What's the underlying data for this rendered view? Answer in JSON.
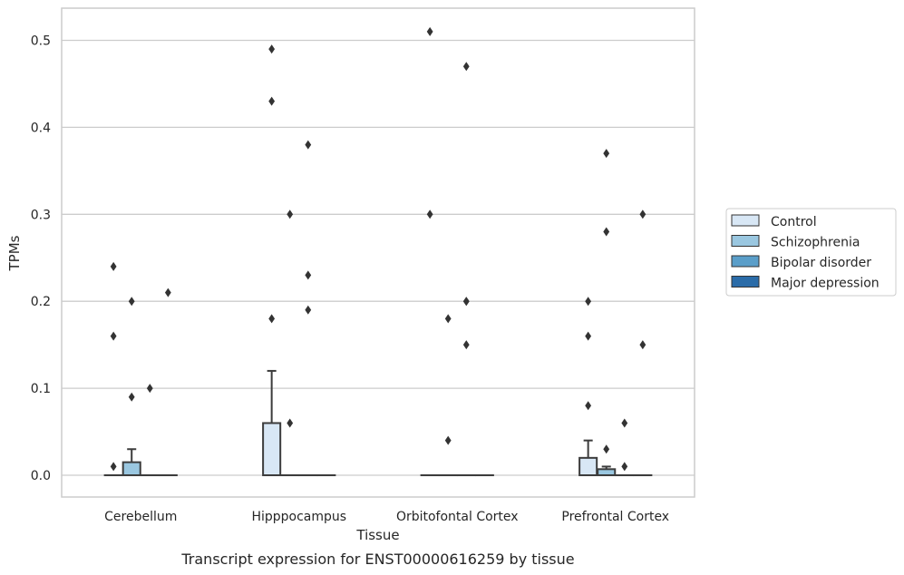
{
  "caption": "Transcript expression for ENST00000616259 by tissue",
  "chart_data": {
    "type": "box",
    "xlabel": "Tissue",
    "ylabel": "TPMs",
    "ylim": [
      -0.025,
      0.537
    ],
    "yticks": [
      0.0,
      0.1,
      0.2,
      0.3,
      0.4,
      0.5
    ],
    "ytick_labels": [
      "0.0",
      "0.1",
      "0.2",
      "0.3",
      "0.4",
      "0.5"
    ],
    "grid": "horizontal",
    "legend_position": "right",
    "categories": [
      "Cerebellum",
      "Hipppocampus",
      "Orbitofontal Cortex",
      "Prefrontal Cortex"
    ],
    "series": [
      {
        "name": "Control",
        "color": "#d8e7f5",
        "boxes": [
          {
            "q1": 0,
            "median": 0,
            "q3": 0,
            "whisker_low": 0,
            "whisker_high": 0,
            "outliers": [
              0.24,
              0.16,
              0.01
            ]
          },
          {
            "q1": 0,
            "median": 0,
            "q3": 0.06,
            "whisker_low": 0,
            "whisker_high": 0.12,
            "outliers": [
              0.49,
              0.43,
              0.18
            ]
          },
          {
            "q1": 0,
            "median": 0,
            "q3": 0,
            "whisker_low": 0,
            "whisker_high": 0,
            "outliers": [
              0.51,
              0.3
            ]
          },
          {
            "q1": 0,
            "median": 0,
            "q3": 0.02,
            "whisker_low": 0,
            "whisker_high": 0.04,
            "outliers": [
              0.2,
              0.16,
              0.08
            ]
          }
        ]
      },
      {
        "name": "Schizophrenia",
        "color": "#9ac7e0",
        "boxes": [
          {
            "q1": 0,
            "median": 0,
            "q3": 0.015,
            "whisker_low": 0,
            "whisker_high": 0.03,
            "outliers": [
              0.2,
              0.09
            ]
          },
          {
            "q1": 0,
            "median": 0,
            "q3": 0,
            "whisker_low": 0,
            "whisker_high": 0,
            "outliers": [
              0.3,
              0.06
            ]
          },
          {
            "q1": 0,
            "median": 0,
            "q3": 0,
            "whisker_low": 0,
            "whisker_high": 0,
            "outliers": [
              0.18,
              0.04
            ]
          },
          {
            "q1": 0,
            "median": 0,
            "q3": 0.007,
            "whisker_low": 0,
            "whisker_high": 0.01,
            "outliers": [
              0.37,
              0.28,
              0.03
            ]
          }
        ]
      },
      {
        "name": "Bipolar disorder",
        "color": "#5a9ec9",
        "boxes": [
          {
            "q1": 0,
            "median": 0,
            "q3": 0,
            "whisker_low": 0,
            "whisker_high": 0,
            "outliers": [
              0.1
            ]
          },
          {
            "q1": 0,
            "median": 0,
            "q3": 0,
            "whisker_low": 0,
            "whisker_high": 0,
            "outliers": [
              0.38,
              0.23,
              0.19
            ]
          },
          {
            "q1": 0,
            "median": 0,
            "q3": 0,
            "whisker_low": 0,
            "whisker_high": 0,
            "outliers": [
              0.2,
              0.2,
              0.47,
              0.15
            ]
          },
          {
            "q1": 0,
            "median": 0,
            "q3": 0,
            "whisker_low": 0,
            "whisker_high": 0,
            "outliers": [
              0.06,
              0.01
            ]
          }
        ]
      },
      {
        "name": "Major depression",
        "color": "#2b6ca8",
        "boxes": [
          {
            "q1": 0,
            "median": 0,
            "q3": 0,
            "whisker_low": 0,
            "whisker_high": 0,
            "outliers": [
              0.21
            ]
          },
          {
            "q1": 0,
            "median": 0,
            "q3": 0,
            "whisker_low": 0,
            "whisker_high": 0,
            "outliers": []
          },
          {
            "q1": 0,
            "median": 0,
            "q3": 0,
            "whisker_low": 0,
            "whisker_high": 0,
            "outliers": []
          },
          {
            "q1": 0,
            "median": 0,
            "q3": 0,
            "whisker_low": 0,
            "whisker_high": 0,
            "outliers": [
              0.3,
              0.15
            ]
          }
        ]
      }
    ]
  }
}
